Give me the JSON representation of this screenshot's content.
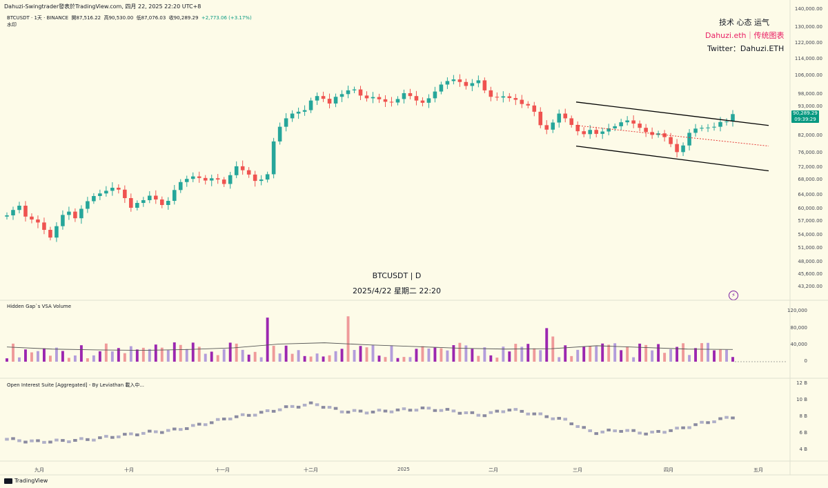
{
  "header": {
    "publisher": "Dahuzi-Swingtrader發表於TradingView.com,  四月 22, 2025 22:20 UTC+8"
  },
  "legend": {
    "symbol": "BTCUSDT · 1天 · BINANCE",
    "open_label": "開",
    "open": "87,516.22",
    "high_label": "高",
    "high": "90,530.00",
    "low_label": "低",
    "low": "87,076.03",
    "close_label": "收",
    "close": "90,289.29",
    "change": "+2,773.06 (+3.17%)",
    "watermark_label": "水印"
  },
  "watermark": {
    "line1": "技术 心态 运气",
    "line2": "Dahuzi.eth｜传统图表",
    "line3": "Twitter：Dahuzi.ETH"
  },
  "center": {
    "title": "BTCUSDT | D",
    "datetime": "2025/4/22 星期二 22:20"
  },
  "price_tag": {
    "price": "90,289.29",
    "countdown": "09:39:29"
  },
  "panes": {
    "volume_label": "Hidden Gap`s VSA Volume",
    "oi_label": "Open Interest Suite [Aggregated] - By Leviathan 載入中..."
  },
  "footer": {
    "brand": "TradingView"
  },
  "colors": {
    "up": "#26a69a",
    "down": "#ef5350",
    "channel": "#000000",
    "mid": "#e53935",
    "bg": "#fdfbe8"
  },
  "chart_data": [
    {
      "type": "candlestick",
      "title": "BTCUSDT | D",
      "y_axis_ticks": [
        "140,000.00",
        "130,000.00",
        "122,000.00",
        "114,000.00",
        "106,000.00",
        "98,000.00",
        "93,000.00",
        "82,000.00",
        "76,000.00",
        "72,000.00",
        "68,000.00",
        "64,000.00",
        "60,000.00",
        "57,000.00",
        "54,000.00",
        "51,000.00",
        "48,000.00",
        "45,600.00",
        "43,200.00"
      ],
      "x_axis_ticks": [
        "九月",
        "十月",
        "十一月",
        "十二月",
        "2025",
        "二月",
        "三月",
        "四月",
        "五月"
      ],
      "close_series": [
        58500,
        59800,
        61000,
        58200,
        57500,
        56800,
        55200,
        53500,
        56000,
        58600,
        59400,
        57800,
        60100,
        62300,
        63800,
        64500,
        65200,
        66000,
        65500,
        63200,
        60400,
        61800,
        62600,
        63900,
        62800,
        61200,
        62400,
        65400,
        67500,
        68400,
        69200,
        68700,
        67900,
        68600,
        68200,
        67000,
        69600,
        72400,
        71200,
        69800,
        67800,
        68200,
        69900,
        80100,
        85500,
        88700,
        90500,
        91200,
        91800,
        95600,
        97400,
        96300,
        94400,
        97100,
        98200,
        99800,
        100200,
        97600,
        96500,
        97000,
        96100,
        95100,
        94800,
        96200,
        98600,
        97400,
        95600,
        94700,
        96500,
        99300,
        102300,
        103800,
        104500,
        103400,
        101700,
        102900,
        104100,
        99800,
        97100,
        96800,
        97300,
        96600,
        95900,
        94200,
        93600,
        91200,
        86100,
        84400,
        87100,
        90500,
        88700,
        86200,
        83800,
        82700,
        84300,
        82800,
        83700,
        84900,
        85700,
        87200,
        87900,
        86700,
        85100,
        83500,
        82400,
        83000,
        81600,
        79200,
        76400,
        78700,
        83200,
        84800,
        85100,
        85200,
        85500,
        87300,
        87500,
        90300
      ],
      "series_highs_estimate": "high ~109,000 (January), low ~49,000 (early August)",
      "channel": {
        "upper_start": 95000,
        "upper_end": 86000,
        "lower_start": 78500,
        "lower_end": 71000,
        "mid_start": 86000,
        "mid_end": 78500
      }
    },
    {
      "type": "bar",
      "title": "Hidden Gap`s VSA Volume",
      "y_axis_ticks": [
        "120,000",
        "80,000",
        "40,000",
        "0"
      ],
      "moving_average_approx": [
        35000,
        30000,
        28000,
        27000,
        29000,
        33000,
        42000,
        45000,
        40000,
        36000,
        32000,
        30000,
        31000,
        38000,
        34000,
        30000,
        29000
      ]
    },
    {
      "type": "bar",
      "title": "Open Interest Suite [Aggregated] - By Leviathan",
      "y_axis_ticks": [
        "12 B",
        "10 B",
        "8 B",
        "6 B",
        "4 B"
      ],
      "values_B_approx": [
        5.3,
        5.0,
        5.1,
        5.3,
        5.7,
        6.1,
        6.4,
        7.1,
        7.9,
        8.4,
        9.1,
        9.6,
        8.7,
        8.6,
        8.8,
        9.0,
        8.7,
        8.2,
        8.9,
        8.3,
        7.6,
        6.1,
        6.4,
        6.0,
        6.5,
        7.3,
        8.0
      ]
    }
  ]
}
